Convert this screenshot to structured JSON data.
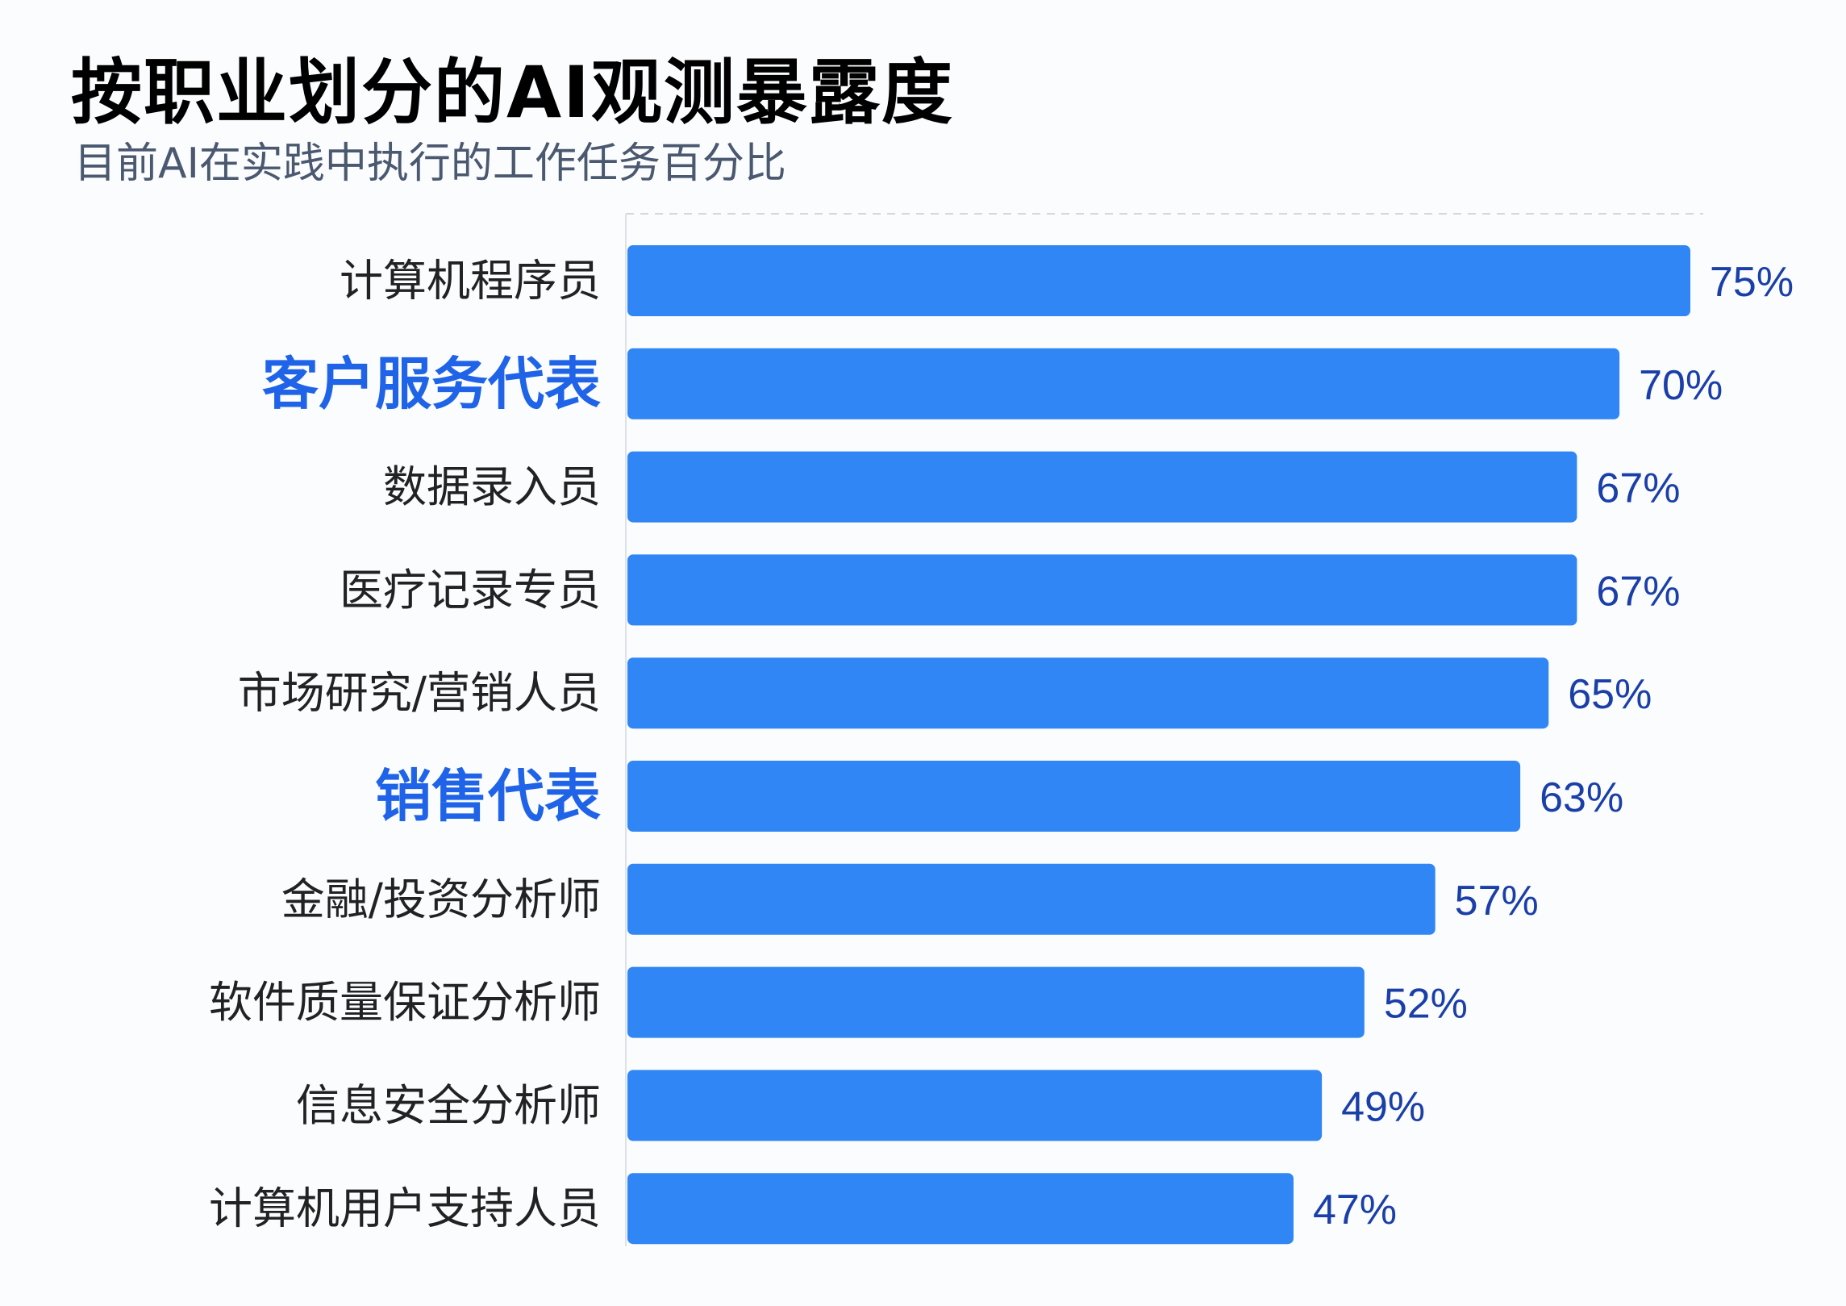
{
  "header": {
    "title": "按职业划分的AI观测暴露度",
    "subtitle": "目前AI在实践中执行的工作任务百分比"
  },
  "colors": {
    "bar": "#2f86f4",
    "highlight_label": "#1f63e8",
    "value_label": "#1a3fa8",
    "label": "#222222"
  },
  "chart_data": {
    "type": "bar",
    "orientation": "horizontal",
    "categories": [
      "计算机程序员",
      "客户服务代表",
      "数据录入员",
      "医疗记录专员",
      "市场研究/营销人员",
      "销售代表",
      "金融/投资分析师",
      "软件质量保证分析师",
      "信息安全分析师",
      "计算机用户支持人员"
    ],
    "values": [
      75,
      70,
      67,
      67,
      65,
      63,
      57,
      52,
      49,
      47
    ],
    "value_labels": [
      "75%",
      "70%",
      "67%",
      "67%",
      "65%",
      "63%",
      "57%",
      "52%",
      "49%",
      "47%"
    ],
    "highlighted": [
      "客户服务代表",
      "销售代表"
    ],
    "xlim": [
      0,
      75
    ],
    "grid": false
  }
}
